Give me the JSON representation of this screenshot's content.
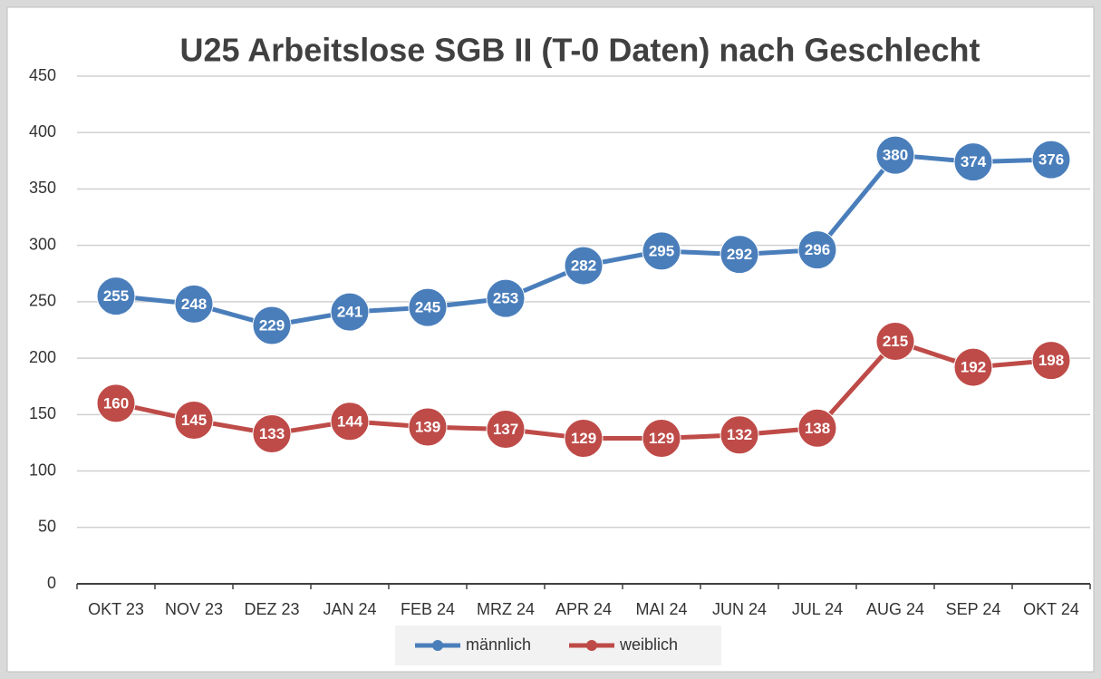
{
  "chart_data": {
    "type": "line",
    "title": "U25 Arbeitslose   SGB II  (T-0 Daten) nach Geschlecht",
    "categories": [
      "OKT 23",
      "NOV 23",
      "DEZ 23",
      "JAN 24",
      "FEB 24",
      "MRZ 24",
      "APR 24",
      "MAI 24",
      "JUN 24",
      "JUL 24",
      "AUG 24",
      "SEP 24",
      "OKT 24"
    ],
    "series": [
      {
        "name": "männlich",
        "color": "#4a7ebb",
        "values": [
          255,
          248,
          229,
          241,
          245,
          253,
          282,
          295,
          292,
          296,
          380,
          374,
          376
        ]
      },
      {
        "name": "weiblich",
        "color": "#be4b48",
        "values": [
          160,
          145,
          133,
          144,
          139,
          137,
          129,
          129,
          132,
          138,
          215,
          192,
          198
        ]
      }
    ],
    "ylim": [
      0,
      450
    ],
    "yticks": [
      0,
      50,
      100,
      150,
      200,
      250,
      300,
      350,
      400,
      450
    ],
    "grid": true,
    "legend": "bottom"
  }
}
